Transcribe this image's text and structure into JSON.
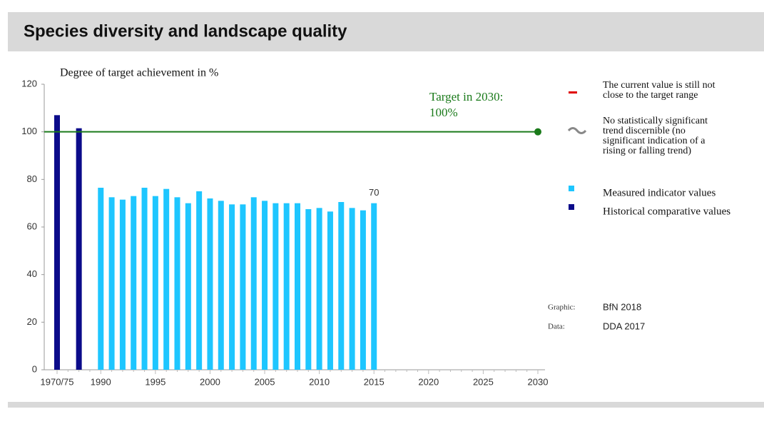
{
  "chart_data": {
    "type": "bar",
    "title": "Species diversity and landscape quality",
    "y_axis_label": "Degree of target achievement in %",
    "categories": [
      "1970/75",
      null,
      null,
      null,
      "1990",
      null,
      null,
      null,
      null,
      "1995",
      null,
      null,
      null,
      null,
      "2000",
      null,
      null,
      null,
      null,
      "2005",
      null,
      null,
      null,
      null,
      "2010",
      null,
      null,
      null,
      null,
      "2015",
      null,
      null,
      null,
      null,
      "2020",
      null,
      null,
      null,
      null,
      "2025",
      null,
      null,
      null,
      null,
      "2030"
    ],
    "series": [
      {
        "name": "Historical comparative values",
        "color": "#0b0b8a",
        "values": [
          107,
          null,
          101.5,
          null,
          null,
          null,
          null,
          null,
          null,
          null,
          null,
          null,
          null,
          null,
          null,
          null,
          null,
          null,
          null,
          null,
          null,
          null,
          null,
          null,
          null,
          null,
          null,
          null,
          null,
          null,
          null,
          null,
          null,
          null,
          null,
          null,
          null,
          null,
          null,
          null,
          null,
          null,
          null,
          null,
          null
        ]
      },
      {
        "name": "Measured indicator values",
        "color": "#1ec6ff",
        "values": [
          null,
          null,
          null,
          null,
          76.5,
          72.5,
          71.5,
          73,
          76.5,
          73,
          76,
          72.5,
          70,
          75,
          72,
          71,
          69.5,
          69.5,
          72.5,
          71,
          70,
          70,
          70,
          67.5,
          68,
          66.5,
          70.5,
          68,
          67,
          70,
          null,
          null,
          null,
          null,
          null,
          null,
          null,
          null,
          null,
          null,
          null,
          null,
          null,
          null,
          null
        ]
      }
    ],
    "data_label_index": 29,
    "target": {
      "value": 100,
      "color": "#1a7a1a",
      "annotation": [
        "Target in 2030:",
        "100%"
      ]
    },
    "ylim": [
      0,
      120
    ],
    "yticks": [
      0,
      20,
      40,
      60,
      80,
      100,
      120
    ],
    "assessment": [
      {
        "symbol_color": "#e00000",
        "text": [
          "The current value is still not",
          "close to the target range"
        ]
      },
      {
        "symbol_color": "#888888",
        "text": [
          "No statistically significant",
          "trend discernible (no",
          "significant indication of a",
          "rising or falling trend)"
        ]
      }
    ],
    "credits": [
      {
        "label": "Graphic:",
        "value": "BfN 2018"
      },
      {
        "label": "Data:",
        "value": "DDA 2017"
      }
    ]
  }
}
